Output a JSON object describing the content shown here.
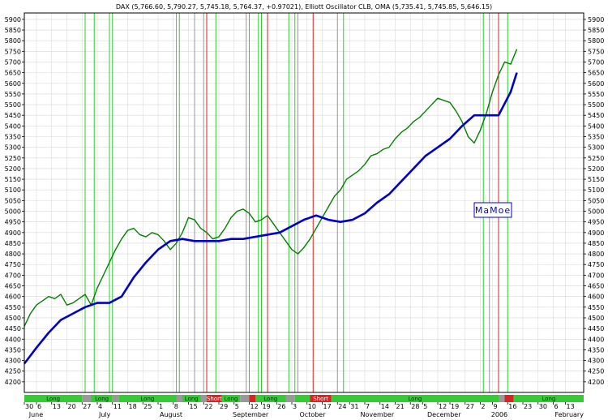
{
  "chart_data": {
    "type": "line",
    "title": "DAX (5,766.60, 5,790.27, 5,745.18, 5,764.37, +0.97021), Elliott Oscillator CLB, OMA (5,735.41, 5,745.85, 5,646.15)",
    "watermark": "MaMoe",
    "xlabel": "",
    "ylabel": "",
    "ylim": [
      4150,
      5930
    ],
    "y_ticks": [
      4200,
      4250,
      4300,
      4350,
      4400,
      4450,
      4500,
      4550,
      4600,
      4650,
      4700,
      4750,
      4800,
      4850,
      4900,
      4950,
      5000,
      5050,
      5100,
      5150,
      5200,
      5250,
      5300,
      5350,
      5400,
      5450,
      5500,
      5550,
      5600,
      5650,
      5700,
      5750,
      5800,
      5850,
      5900
    ],
    "x_range": [
      0,
      162
    ],
    "x_day_labels": [
      {
        "x": 0,
        "label": "30"
      },
      {
        "x": 4,
        "label": "6"
      },
      {
        "x": 9,
        "label": "13"
      },
      {
        "x": 14,
        "label": "20"
      },
      {
        "x": 19,
        "label": "27"
      },
      {
        "x": 24,
        "label": "4"
      },
      {
        "x": 29,
        "label": "11"
      },
      {
        "x": 34,
        "label": "18"
      },
      {
        "x": 39,
        "label": "25"
      },
      {
        "x": 44,
        "label": "1"
      },
      {
        "x": 49,
        "label": "8"
      },
      {
        "x": 54,
        "label": "15"
      },
      {
        "x": 59,
        "label": "22"
      },
      {
        "x": 64,
        "label": "29"
      },
      {
        "x": 69,
        "label": "5"
      },
      {
        "x": 74,
        "label": "12"
      },
      {
        "x": 78,
        "label": "19"
      },
      {
        "x": 83,
        "label": "26"
      },
      {
        "x": 88,
        "label": "3"
      },
      {
        "x": 93,
        "label": "10"
      },
      {
        "x": 98,
        "label": "17"
      },
      {
        "x": 103,
        "label": "24"
      },
      {
        "x": 107,
        "label": "31"
      },
      {
        "x": 112,
        "label": "7"
      },
      {
        "x": 117,
        "label": "14"
      },
      {
        "x": 122,
        "label": "21"
      },
      {
        "x": 127,
        "label": "28"
      },
      {
        "x": 131,
        "label": "5"
      },
      {
        "x": 136,
        "label": "12"
      },
      {
        "x": 140,
        "label": "19"
      },
      {
        "x": 145,
        "label": "27"
      },
      {
        "x": 150,
        "label": "2"
      },
      {
        "x": 154,
        "label": "9"
      },
      {
        "x": 159,
        "label": "16"
      },
      {
        "x": 164,
        "label": "23"
      },
      {
        "x": 169,
        "label": "30"
      },
      {
        "x": 174,
        "label": "6"
      },
      {
        "x": 178,
        "label": "13"
      }
    ],
    "x_month_labels": [
      {
        "x": 1,
        "label": "June"
      },
      {
        "x": 24,
        "label": "July"
      },
      {
        "x": 44,
        "label": "August"
      },
      {
        "x": 68,
        "label": "September"
      },
      {
        "x": 90,
        "label": "October"
      },
      {
        "x": 110,
        "label": "November"
      },
      {
        "x": 132,
        "label": "December"
      },
      {
        "x": 153,
        "label": "2006"
      },
      {
        "x": 174,
        "label": "February"
      }
    ],
    "series": [
      {
        "name": "DAX",
        "color": "#008000",
        "x": [
          0,
          2,
          4,
          6,
          8,
          10,
          12,
          14,
          16,
          18,
          20,
          22,
          24,
          26,
          28,
          30,
          32,
          34,
          36,
          38,
          40,
          42,
          44,
          46,
          48,
          50,
          52,
          54,
          56,
          58,
          60,
          62,
          64,
          66,
          68,
          70,
          72,
          74,
          76,
          78,
          80,
          82,
          84,
          86,
          88,
          90,
          92,
          94,
          96,
          98,
          100,
          102,
          104,
          106,
          108,
          110,
          112,
          114,
          116,
          118,
          120,
          122,
          124,
          126,
          128,
          130,
          132,
          134,
          136,
          138,
          140,
          142,
          144,
          146,
          148,
          150,
          152,
          154,
          156,
          158,
          160,
          162
        ],
        "values": [
          4460,
          4520,
          4560,
          4580,
          4600,
          4590,
          4610,
          4560,
          4570,
          4590,
          4610,
          4560,
          4640,
          4700,
          4760,
          4820,
          4870,
          4910,
          4920,
          4890,
          4880,
          4900,
          4890,
          4860,
          4820,
          4850,
          4900,
          4970,
          4960,
          4920,
          4900,
          4870,
          4880,
          4920,
          4970,
          5000,
          5010,
          4990,
          4950,
          4960,
          4980,
          4940,
          4900,
          4860,
          4820,
          4800,
          4830,
          4870,
          4920,
          4970,
          5020,
          5070,
          5100,
          5150,
          5170,
          5190,
          5220,
          5260,
          5270,
          5290,
          5300,
          5340,
          5370,
          5390,
          5420,
          5440,
          5470,
          5500,
          5530,
          5520,
          5510,
          5470,
          5420,
          5350,
          5320,
          5380,
          5460,
          5560,
          5640,
          5700,
          5690,
          5760
        ]
      },
      {
        "name": "",
        "color": "#0000cc",
        "x": [
          0,
          4,
          8,
          12,
          16,
          20,
          24,
          28,
          32,
          36,
          40,
          44,
          48,
          52,
          56,
          60,
          64,
          68,
          72,
          76,
          80,
          84,
          88,
          92,
          96,
          100,
          104,
          108,
          112,
          116,
          120,
          124,
          128,
          132,
          136,
          140,
          144,
          148,
          152,
          154,
          156,
          160,
          162
        ],
        "values": [
          4285,
          4360,
          4430,
          4490,
          4520,
          4550,
          4570,
          4570,
          4600,
          4690,
          4760,
          4820,
          4860,
          4870,
          4860,
          4860,
          4860,
          4870,
          4870,
          4880,
          4890,
          4900,
          4930,
          4960,
          4980,
          4960,
          4950,
          4960,
          4990,
          5040,
          5080,
          5140,
          5200,
          5260,
          5300,
          5340,
          5400,
          5450,
          5450,
          5450,
          5450,
          5560,
          5650
        ]
      }
    ],
    "signal_bands": [
      {
        "start": 0,
        "end": 19,
        "label": "Long",
        "color": "#33cc33"
      },
      {
        "start": 19,
        "end": 22,
        "label": "",
        "color": "#999999"
      },
      {
        "start": 22,
        "end": 29,
        "label": "Long",
        "color": "#33cc33"
      },
      {
        "start": 29,
        "end": 31,
        "label": "",
        "color": "#999999"
      },
      {
        "start": 31,
        "end": 50,
        "label": "Long",
        "color": "#33cc33"
      },
      {
        "start": 50,
        "end": 52,
        "label": "",
        "color": "#999999"
      },
      {
        "start": 52,
        "end": 58,
        "label": "Long",
        "color": "#33cc33"
      },
      {
        "start": 58,
        "end": 60,
        "label": "",
        "color": "#999999"
      },
      {
        "start": 60,
        "end": 65,
        "label": "Short",
        "color": "#dd2222"
      },
      {
        "start": 65,
        "end": 71,
        "label": "Long",
        "color": "#33cc33"
      },
      {
        "start": 71,
        "end": 74,
        "label": "",
        "color": "#999999"
      },
      {
        "start": 74,
        "end": 76,
        "label": "",
        "color": "#dd2222"
      },
      {
        "start": 76,
        "end": 86,
        "label": "Long",
        "color": "#33cc33"
      },
      {
        "start": 86,
        "end": 89,
        "label": "",
        "color": "#999999"
      },
      {
        "start": 89,
        "end": 94,
        "label": "",
        "color": "#33cc33"
      },
      {
        "start": 94,
        "end": 101,
        "label": "Short",
        "color": "#dd2222"
      },
      {
        "start": 101,
        "end": 156,
        "label": "Long",
        "color": "#33cc33"
      },
      {
        "start": 156,
        "end": 158,
        "label": "",
        "color": "#999999"
      },
      {
        "start": 158,
        "end": 161,
        "label": "",
        "color": "#dd2222"
      },
      {
        "start": 161,
        "end": 184,
        "label": "Long",
        "color": "#33cc33"
      }
    ],
    "vertical_markers": [
      {
        "x": 20,
        "color": "#33cc33"
      },
      {
        "x": 23,
        "color": "#33cc33"
      },
      {
        "x": 28,
        "color": "#33cc33"
      },
      {
        "x": 29,
        "color": "#33cc33"
      },
      {
        "x": 50,
        "color": "#999999"
      },
      {
        "x": 51,
        "color": "#33cc33"
      },
      {
        "x": 56,
        "color": "#999999"
      },
      {
        "x": 59,
        "color": "#999999"
      },
      {
        "x": 60,
        "color": "#dd2222"
      },
      {
        "x": 63,
        "color": "#33cc33"
      },
      {
        "x": 73,
        "color": "#999999"
      },
      {
        "x": 74,
        "color": "#33cc33"
      },
      {
        "x": 77,
        "color": "#33cc33"
      },
      {
        "x": 78,
        "color": "#33cc33"
      },
      {
        "x": 80,
        "color": "#dd2222"
      },
      {
        "x": 87,
        "color": "#33cc33"
      },
      {
        "x": 89,
        "color": "#33cc33"
      },
      {
        "x": 90,
        "color": "#999999"
      },
      {
        "x": 95,
        "color": "#dd2222"
      },
      {
        "x": 103,
        "color": "#999999"
      },
      {
        "x": 105,
        "color": "#33cc33"
      },
      {
        "x": 151,
        "color": "#33cc33"
      },
      {
        "x": 153,
        "color": "#999999"
      },
      {
        "x": 156,
        "color": "#dd2222"
      },
      {
        "x": 159,
        "color": "#33cc33"
      }
    ],
    "grid": true,
    "legend": "none"
  }
}
